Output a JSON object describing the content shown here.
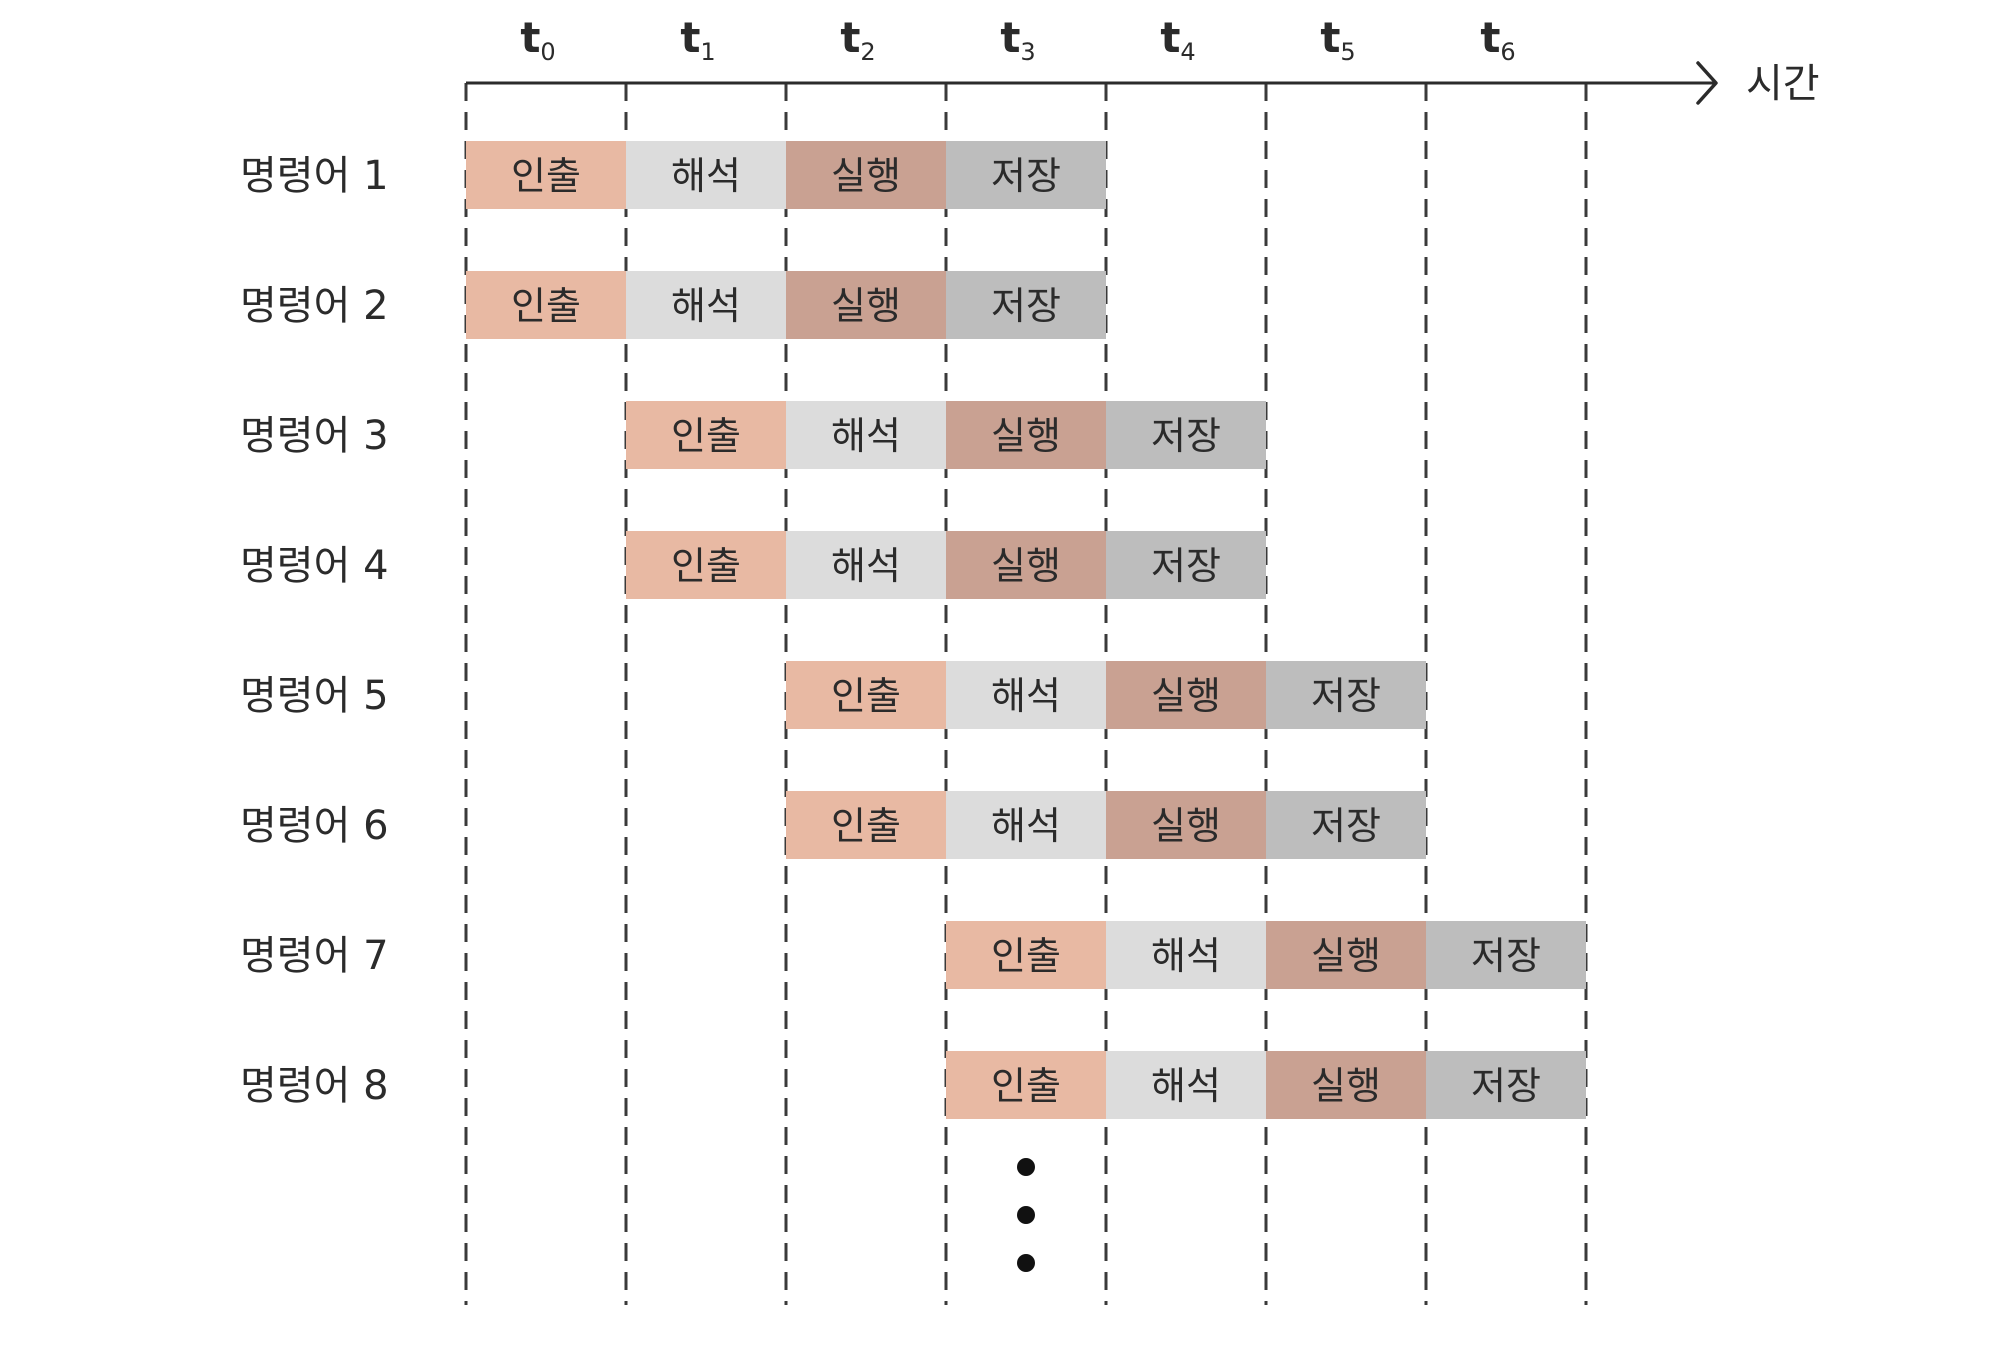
{
  "time_labels": [
    {
      "base": "t",
      "sub": "0"
    },
    {
      "base": "t",
      "sub": "1"
    },
    {
      "base": "t",
      "sub": "2"
    },
    {
      "base": "t",
      "sub": "3"
    },
    {
      "base": "t",
      "sub": "4"
    },
    {
      "base": "t",
      "sub": "5"
    },
    {
      "base": "t",
      "sub": "6"
    }
  ],
  "axis_label": "시간",
  "stages": [
    {
      "key": "fetch",
      "label": "인출",
      "color": "#e8b9a3"
    },
    {
      "key": "decode",
      "label": "해석",
      "color": "#dcdcdc"
    },
    {
      "key": "execute",
      "label": "실행",
      "color": "#c9a192"
    },
    {
      "key": "store",
      "label": "저장",
      "color": "#bdbdbd"
    }
  ],
  "instructions": [
    {
      "label": "명령어 1",
      "start": 0
    },
    {
      "label": "명령어 2",
      "start": 0
    },
    {
      "label": "명령어 3",
      "start": 1
    },
    {
      "label": "명령어 4",
      "start": 1
    },
    {
      "label": "명령어 5",
      "start": 2
    },
    {
      "label": "명령어 6",
      "start": 2
    },
    {
      "label": "명령어 7",
      "start": 3
    },
    {
      "label": "명령어 8",
      "start": 3
    }
  ],
  "continuation": {
    "column": 3,
    "dot_count": 3
  },
  "colors": {
    "ink": "#2b2b2b",
    "grid": "#3a3a3a"
  }
}
